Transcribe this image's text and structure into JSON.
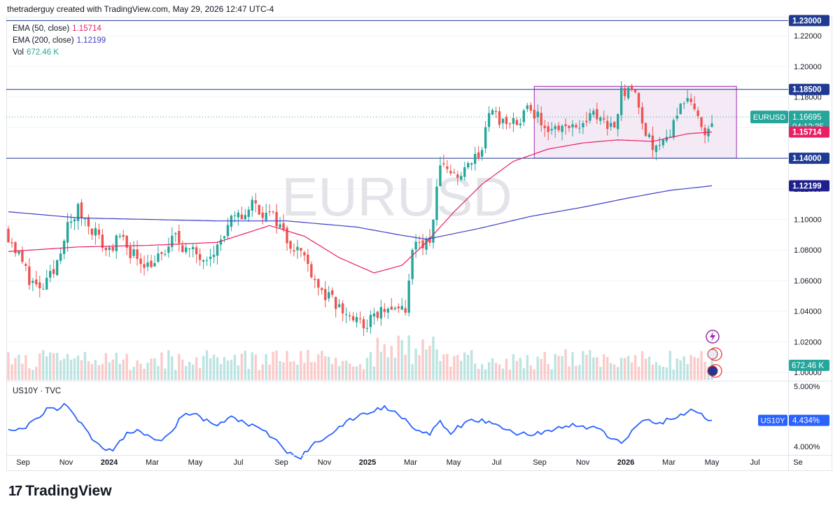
{
  "header": {
    "text": "thetraderguy created with TradingView.com, May 29, 2026 12:47 UTC-4"
  },
  "legend": [
    {
      "label": "EMA (50, close)",
      "value": "1.15714",
      "color": "#e91e63"
    },
    {
      "label": "EMA (200, close)",
      "value": "1.12199",
      "color": "#3f3fc8"
    },
    {
      "label": "Vol",
      "value": "672.46 K",
      "color": "#26a69a"
    }
  ],
  "sublegend": {
    "label": "US10Y · TVC"
  },
  "watermark": "EURUSD",
  "brand": {
    "mark": "17",
    "name": "TradingView"
  },
  "colors": {
    "up": "#26a69a",
    "down": "#ef5350",
    "ema50": "#e91e63",
    "ema200": "#3f3fc8",
    "us10y": "#2962ff",
    "range_fill": "#f1e6f5",
    "range_border": "#9c27b0",
    "hline": "#1f3a93"
  },
  "chart_data": [
    {
      "type": "candlestick",
      "symbol": "EURUSD",
      "timeframe": "weekly",
      "ylim": [
        0.995,
        1.232
      ],
      "ytick_labels": [
        "1.22000",
        "1.20000",
        "1.18000",
        "1.16000",
        "1.14000",
        "1.12000",
        "1.10000",
        "1.08000",
        "1.06000",
        "1.04000",
        "1.02000",
        "1.00000"
      ],
      "ytick_values": [
        1.22,
        1.2,
        1.18,
        1.16,
        1.14,
        1.12,
        1.1,
        1.08,
        1.06,
        1.04,
        1.02,
        1.0
      ],
      "xtick_labels": [
        "Sep",
        "Nov",
        "2024",
        "Mar",
        "May",
        "Jul",
        "Sep",
        "Nov",
        "2025",
        "Mar",
        "May",
        "Jul",
        "Sep",
        "Nov",
        "2026",
        "Mar",
        "May",
        "Jul",
        "Se"
      ],
      "horizontal_lines": [
        1.23,
        1.185,
        1.14
      ],
      "range_box": {
        "low": 1.14,
        "high": 1.187
      },
      "last_price": 1.16695,
      "price_labels": [
        {
          "value": 1.23,
          "text": "1.23000",
          "kind": "line"
        },
        {
          "value": 1.185,
          "text": "1.18500",
          "kind": "line"
        },
        {
          "value": 1.16695,
          "text": "1.16695",
          "sub": "04:12:35",
          "tag": "EURUSD",
          "kind": "last"
        },
        {
          "value": 1.15714,
          "text": "1.15714",
          "kind": "ema50"
        },
        {
          "value": 1.14,
          "text": "1.14000",
          "kind": "line"
        },
        {
          "value": 1.12199,
          "text": "1.12199",
          "kind": "ema200"
        }
      ],
      "anchors": [
        [
          0,
          1.09
        ],
        [
          6,
          1.062
        ],
        [
          9,
          1.052
        ],
        [
          13,
          1.065
        ],
        [
          16,
          1.09
        ],
        [
          20,
          1.106
        ],
        [
          24,
          1.095
        ],
        [
          28,
          1.08
        ],
        [
          32,
          1.087
        ],
        [
          36,
          1.077
        ],
        [
          40,
          1.071
        ],
        [
          44,
          1.075
        ],
        [
          48,
          1.089
        ],
        [
          52,
          1.078
        ],
        [
          56,
          1.077
        ],
        [
          60,
          1.082
        ],
        [
          64,
          1.098
        ],
        [
          68,
          1.104
        ],
        [
          70,
          1.111
        ],
        [
          74,
          1.103
        ],
        [
          77,
          1.1
        ],
        [
          80,
          1.087
        ],
        [
          84,
          1.079
        ],
        [
          87,
          1.067
        ],
        [
          90,
          1.052
        ],
        [
          93,
          1.046
        ],
        [
          96,
          1.04
        ],
        [
          99,
          1.035
        ],
        [
          102,
          1.03
        ],
        [
          105,
          1.036
        ],
        [
          108,
          1.042
        ],
        [
          111,
          1.038
        ],
        [
          114,
          1.04
        ],
        [
          116,
          1.078
        ],
        [
          118,
          1.083
        ],
        [
          121,
          1.085
        ],
        [
          124,
          1.136
        ],
        [
          127,
          1.133
        ],
        [
          130,
          1.128
        ],
        [
          133,
          1.136
        ],
        [
          136,
          1.15
        ],
        [
          138,
          1.171
        ],
        [
          140,
          1.168
        ],
        [
          143,
          1.16
        ],
        [
          146,
          1.165
        ],
        [
          149,
          1.171
        ],
        [
          152,
          1.167
        ],
        [
          155,
          1.161
        ],
        [
          158,
          1.16
        ],
        [
          161,
          1.157
        ],
        [
          165,
          1.16
        ],
        [
          168,
          1.171
        ],
        [
          171,
          1.163
        ],
        [
          174,
          1.165
        ],
        [
          176,
          1.182
        ],
        [
          178,
          1.185
        ],
        [
          181,
          1.175
        ],
        [
          183,
          1.157
        ],
        [
          185,
          1.148
        ],
        [
          187,
          1.149
        ],
        [
          190,
          1.158
        ],
        [
          192,
          1.172
        ],
        [
          194,
          1.178
        ],
        [
          196,
          1.175
        ],
        [
          198,
          1.164
        ],
        [
          200,
          1.16
        ],
        [
          202,
          1.16695
        ]
      ],
      "ema50_anchors": [
        [
          0,
          1.079
        ],
        [
          20,
          1.082
        ],
        [
          40,
          1.083
        ],
        [
          60,
          1.085
        ],
        [
          75,
          1.096
        ],
        [
          85,
          1.089
        ],
        [
          95,
          1.075
        ],
        [
          105,
          1.065
        ],
        [
          113,
          1.07
        ],
        [
          120,
          1.085
        ],
        [
          128,
          1.105
        ],
        [
          136,
          1.123
        ],
        [
          145,
          1.138
        ],
        [
          155,
          1.146
        ],
        [
          165,
          1.15
        ],
        [
          175,
          1.152
        ],
        [
          185,
          1.151
        ],
        [
          195,
          1.156
        ],
        [
          202,
          1.15714
        ]
      ],
      "ema200_anchors": [
        [
          0,
          1.105
        ],
        [
          20,
          1.101
        ],
        [
          40,
          1.1
        ],
        [
          60,
          1.099
        ],
        [
          80,
          1.099
        ],
        [
          100,
          1.095
        ],
        [
          112,
          1.09
        ],
        [
          120,
          1.087
        ],
        [
          135,
          1.094
        ],
        [
          150,
          1.102
        ],
        [
          165,
          1.108
        ],
        [
          178,
          1.114
        ],
        [
          190,
          1.119
        ],
        [
          202,
          1.12199
        ]
      ]
    },
    {
      "type": "bar",
      "name": "Vol",
      "last_value_label": "672.46 K"
    },
    {
      "type": "line",
      "name": "US10Y · TVC",
      "ylim": [
        3.86,
        5.08
      ],
      "ytick_labels": [
        "5.000%",
        "4.000%"
      ],
      "ytick_values": [
        5.0,
        4.0
      ],
      "last_value_label": "4.434%",
      "last_value": 4.434,
      "anchors": [
        [
          0,
          4.25
        ],
        [
          5,
          4.32
        ],
        [
          10,
          4.55
        ],
        [
          12,
          4.65
        ],
        [
          14,
          4.6
        ],
        [
          16,
          4.72
        ],
        [
          18,
          4.6
        ],
        [
          21,
          4.38
        ],
        [
          24,
          4.15
        ],
        [
          27,
          3.98
        ],
        [
          30,
          3.95
        ],
        [
          34,
          4.2
        ],
        [
          37,
          4.3
        ],
        [
          40,
          4.18
        ],
        [
          44,
          4.12
        ],
        [
          47,
          4.28
        ],
        [
          50,
          4.5
        ],
        [
          53,
          4.55
        ],
        [
          56,
          4.45
        ],
        [
          60,
          4.35
        ],
        [
          64,
          4.48
        ],
        [
          68,
          4.4
        ],
        [
          72,
          4.28
        ],
        [
          76,
          4.15
        ],
        [
          80,
          3.9
        ],
        [
          84,
          3.82
        ],
        [
          88,
          4.05
        ],
        [
          92,
          4.2
        ],
        [
          96,
          4.35
        ],
        [
          100,
          4.5
        ],
        [
          104,
          4.58
        ],
        [
          108,
          4.65
        ],
        [
          112,
          4.55
        ],
        [
          115,
          4.4
        ],
        [
          118,
          4.25
        ],
        [
          121,
          4.2
        ],
        [
          124,
          4.4
        ],
        [
          127,
          4.22
        ],
        [
          130,
          4.35
        ],
        [
          134,
          4.45
        ],
        [
          138,
          4.4
        ],
        [
          142,
          4.3
        ],
        [
          146,
          4.22
        ],
        [
          150,
          4.2
        ],
        [
          154,
          4.25
        ],
        [
          158,
          4.3
        ],
        [
          162,
          4.35
        ],
        [
          166,
          4.32
        ],
        [
          170,
          4.3
        ],
        [
          173,
          4.12
        ],
        [
          176,
          4.05
        ],
        [
          179,
          4.25
        ],
        [
          182,
          4.45
        ],
        [
          186,
          4.38
        ],
        [
          190,
          4.45
        ],
        [
          194,
          4.55
        ],
        [
          196,
          4.6
        ],
        [
          199,
          4.52
        ],
        [
          202,
          4.434
        ]
      ]
    }
  ]
}
